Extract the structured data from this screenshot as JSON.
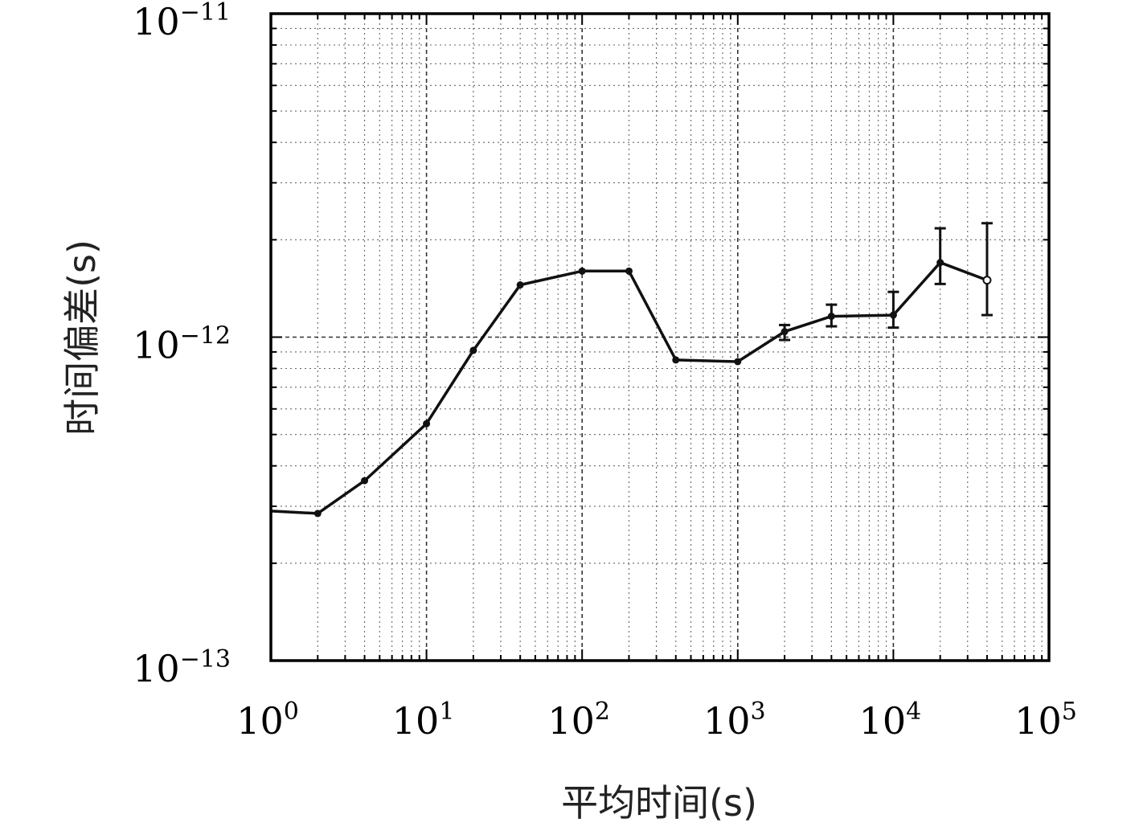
{
  "chart_data": {
    "type": "line",
    "xscale": "log",
    "yscale": "log",
    "xlim": [
      1,
      100000
    ],
    "ylim": [
      1e-13,
      1e-11
    ],
    "xlabel": "平均时间(s)",
    "ylabel": "时间偏差(s)",
    "title": "",
    "grid": true,
    "x_ticks": [
      {
        "base": "10",
        "exp": "0"
      },
      {
        "base": "10",
        "exp": "1"
      },
      {
        "base": "10",
        "exp": "2"
      },
      {
        "base": "10",
        "exp": "3"
      },
      {
        "base": "10",
        "exp": "4"
      },
      {
        "base": "10",
        "exp": "5"
      }
    ],
    "y_ticks": [
      {
        "base": "10",
        "exp": "−13"
      },
      {
        "base": "10",
        "exp": "−12"
      },
      {
        "base": "10",
        "exp": "−11"
      }
    ],
    "series": [
      {
        "x": [
          1,
          2,
          4,
          10,
          20,
          40,
          100,
          200,
          400,
          1000,
          2000,
          4000,
          10000,
          20000,
          40000
        ],
        "y": [
          2.9e-13,
          2.85e-13,
          3.6e-13,
          5.4e-13,
          9.1e-13,
          1.45e-12,
          1.6e-12,
          1.6e-12,
          8.5e-13,
          8.4e-13,
          1.04e-12,
          1.16e-12,
          1.17e-12,
          1.7e-12,
          1.5e-12
        ],
        "yerr_low": [
          null,
          null,
          null,
          null,
          null,
          null,
          null,
          null,
          null,
          null,
          9.8e-13,
          1.08e-12,
          1.07e-12,
          1.46e-12,
          1.17e-12
        ],
        "yerr_high": [
          null,
          null,
          null,
          null,
          null,
          null,
          null,
          null,
          null,
          null,
          1.09e-12,
          1.26e-12,
          1.38e-12,
          2.17e-12,
          2.25e-12
        ],
        "markers": [
          false,
          true,
          true,
          true,
          true,
          true,
          true,
          true,
          true,
          true,
          true,
          true,
          true,
          true,
          "open"
        ]
      }
    ]
  }
}
